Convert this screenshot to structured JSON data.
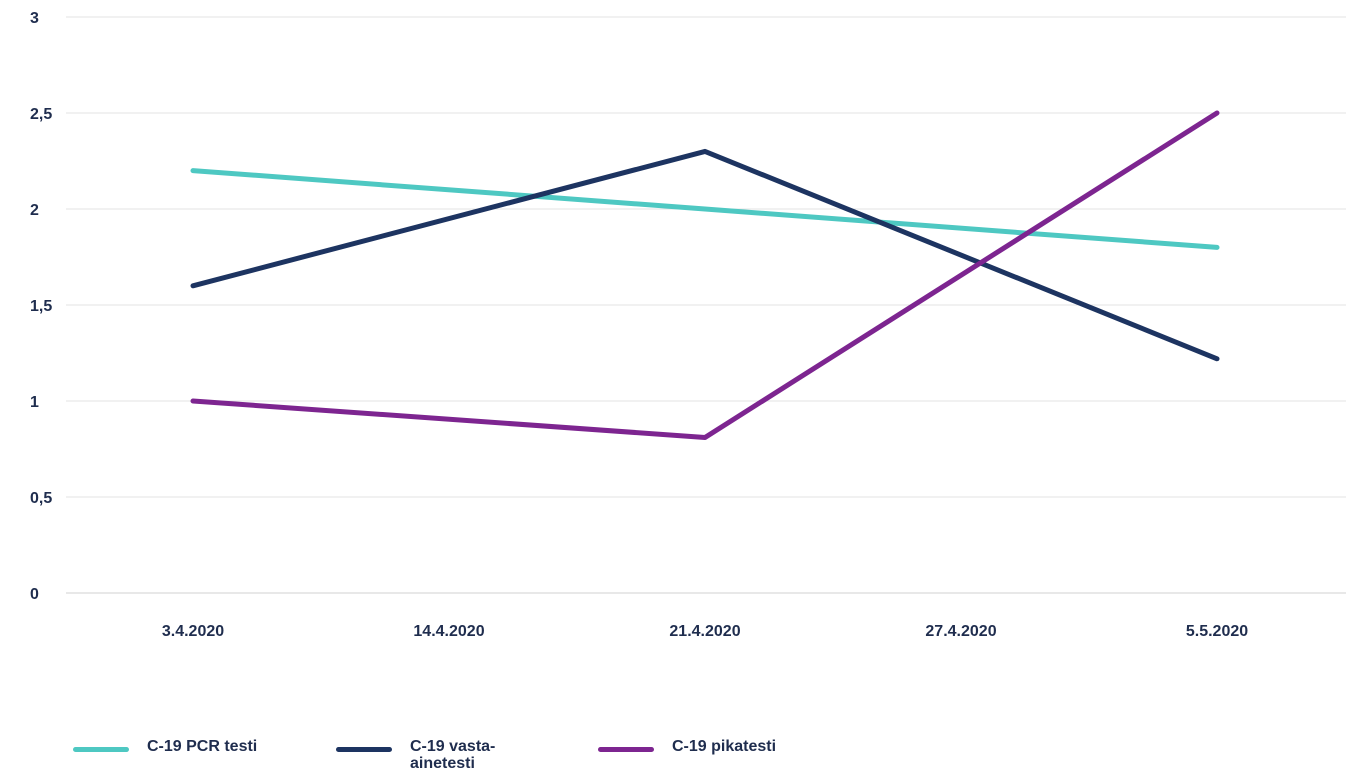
{
  "chart_data": {
    "type": "line",
    "title": "",
    "xlabel": "",
    "ylabel": "",
    "categories": [
      "3.4.2020",
      "14.4.2020",
      "21.4.2020",
      "27.4.2020",
      "5.5.2020"
    ],
    "y_ticks": [
      "0",
      "0,5",
      "1",
      "1,5",
      "2",
      "2,5",
      "3"
    ],
    "ylim": [
      0,
      3
    ],
    "grid": true,
    "legend_position": "bottom-left",
    "series": [
      {
        "name": "C-19 PCR testi",
        "color": "#4ec8c2",
        "points": [
          [
            0,
            2.2
          ],
          [
            2,
            2.0
          ],
          [
            4,
            1.8
          ]
        ]
      },
      {
        "name": "C-19 vasta-ainetesti",
        "color": "#1d3461",
        "points": [
          [
            0,
            1.6
          ],
          [
            2,
            2.3
          ],
          [
            4,
            1.22
          ]
        ]
      },
      {
        "name": "C-19 pikatesti",
        "color": "#7d2590",
        "points": [
          [
            0,
            1.0
          ],
          [
            2,
            0.81
          ],
          [
            4,
            2.5
          ]
        ]
      }
    ]
  },
  "legend": {
    "items": [
      {
        "label": "C-19 PCR testi",
        "color": "#4ec8c2"
      },
      {
        "label": "C-19 vasta-ainetesti",
        "color": "#1d3461"
      },
      {
        "label": "C-19 pikatesti",
        "color": "#7d2590"
      }
    ]
  }
}
